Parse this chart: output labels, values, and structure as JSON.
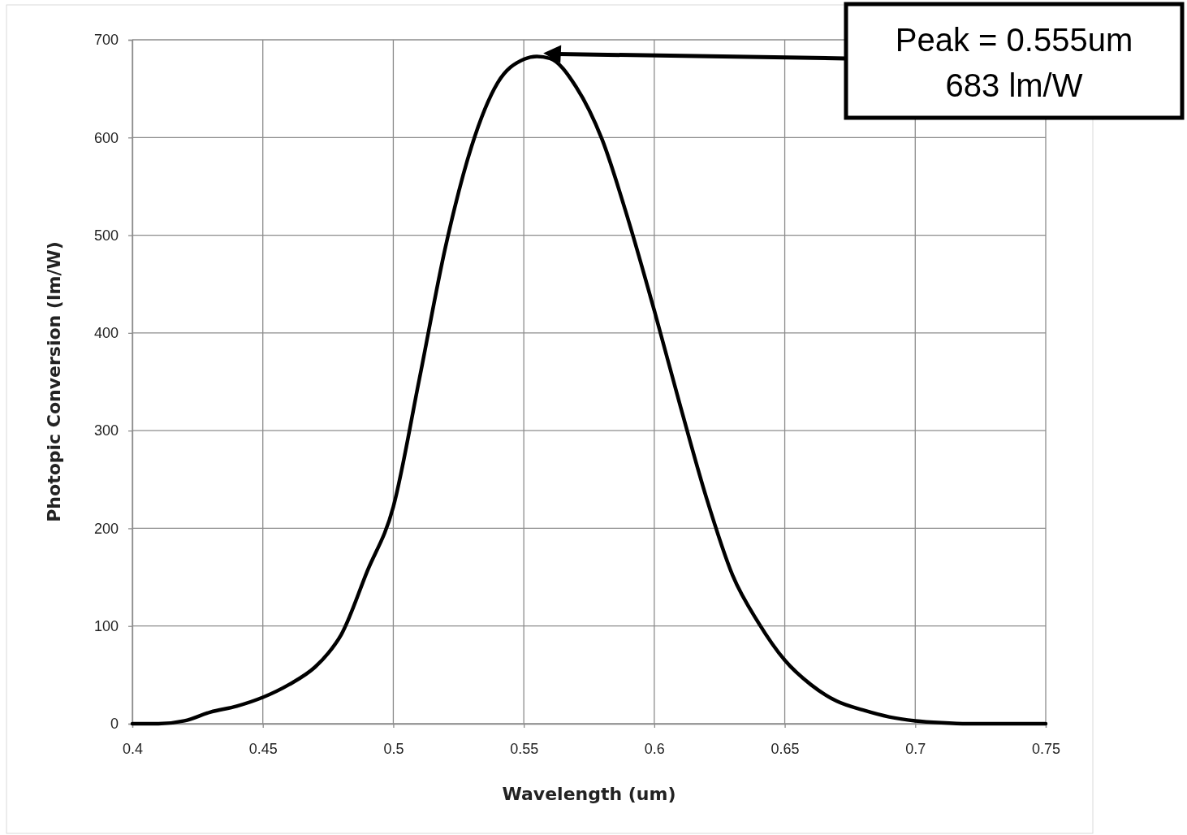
{
  "chart_data": {
    "type": "line",
    "xlabel": "Wavelength (um)",
    "ylabel": "Photopic Conversion (lm/W)",
    "x": [
      0.4,
      0.41,
      0.42,
      0.43,
      0.44,
      0.45,
      0.46,
      0.47,
      0.475,
      0.48,
      0.49,
      0.5,
      0.51,
      0.52,
      0.53,
      0.54,
      0.55,
      0.555,
      0.56,
      0.57,
      0.58,
      0.59,
      0.6,
      0.61,
      0.62,
      0.63,
      0.64,
      0.65,
      0.66,
      0.67,
      0.68,
      0.69,
      0.7,
      0.71,
      0.72,
      0.73,
      0.74,
      0.75
    ],
    "series": [
      {
        "color": "#000000",
        "values": [
          0,
          0,
          3,
          12,
          18,
          27,
          40,
          58,
          72,
          91,
          156,
          222,
          353,
          488,
          591,
          656,
          680,
          683,
          681,
          652,
          598,
          516,
          423,
          325,
          231,
          152,
          103,
          65,
          40,
          23,
          14,
          7,
          3,
          1,
          0,
          0,
          0,
          0
        ]
      }
    ],
    "xlim": [
      0.4,
      0.75
    ],
    "xticks": [
      0.4,
      0.45,
      0.5,
      0.55,
      0.6,
      0.65,
      0.7,
      0.75
    ],
    "ylim": [
      0,
      700
    ],
    "yticks": [
      0,
      100,
      200,
      300,
      400,
      500,
      600,
      700
    ],
    "grid": true,
    "marker": "none",
    "line_style": "solid",
    "annotations": [
      "Peak = 0.555um\n683 lm/W"
    ]
  }
}
